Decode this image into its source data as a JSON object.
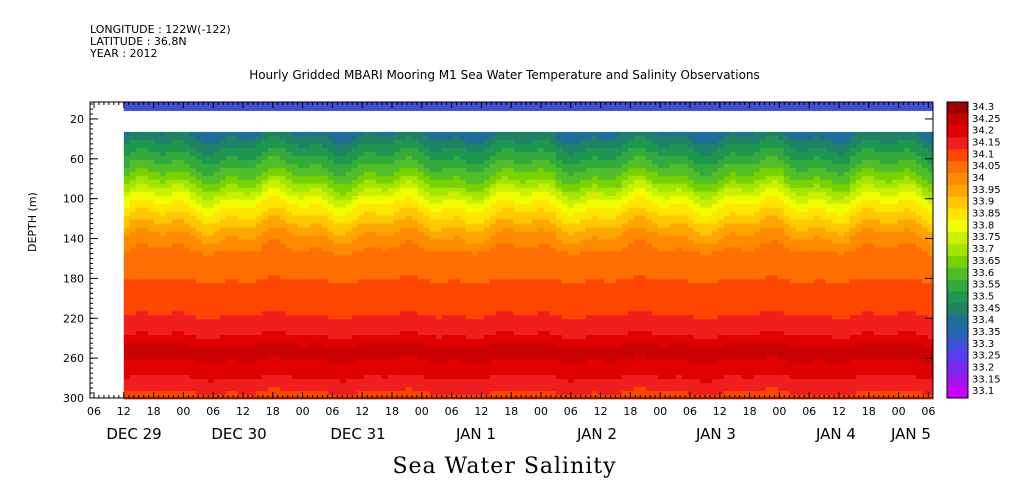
{
  "header": {
    "longitude": "LONGITUDE : 122W(-122)",
    "latitude": "LATITUDE : 36.8N",
    "year": "YEAR : 2012"
  },
  "chart_data": {
    "type": "heatmap",
    "title": "Hourly Gridded MBARI Mooring M1 Sea Water Temperature and Salinity Observations",
    "variable_label": "Sea Water Salinity",
    "ylabel": "DEPTH (m)",
    "y_ticks": [
      20,
      60,
      100,
      140,
      180,
      220,
      260,
      300
    ],
    "ylim": [
      300,
      3
    ],
    "x_hour_ticks": [
      "06",
      "12",
      "18",
      "00",
      "06",
      "12",
      "18",
      "00",
      "06",
      "12",
      "18",
      "00",
      "06",
      "12",
      "18",
      "00",
      "06",
      "12",
      "18",
      "00",
      "06",
      "12",
      "18",
      "00",
      "06",
      "12",
      "18",
      "00",
      "06"
    ],
    "x_day_labels": [
      "DEC 29",
      "DEC 30",
      "DEC 31",
      "JAN  1",
      "JAN  2",
      "JAN  3",
      "JAN  4",
      "JAN  5"
    ],
    "data_start": "DEC 29 12",
    "colorbar_levels": [
      "34.3",
      "34.25",
      "34.2",
      "34.15",
      "34.1",
      "34.05",
      "34",
      "33.95",
      "33.9",
      "33.85",
      "33.8",
      "33.75",
      "33.7",
      "33.65",
      "33.6",
      "33.55",
      "33.5",
      "33.45",
      "33.4",
      "33.35",
      "33.3",
      "33.25",
      "33.2",
      "33.15",
      "33.1"
    ],
    "colorbar_colors": [
      "#a00000",
      "#c80000",
      "#e00000",
      "#f01e1e",
      "#ff4600",
      "#ff6e00",
      "#ff8c00",
      "#ffa500",
      "#ffc800",
      "#ffe600",
      "#f0ff00",
      "#c8f000",
      "#a0e600",
      "#78d200",
      "#50be28",
      "#32aa3c",
      "#1e9650",
      "#1e8264",
      "#1e6e96",
      "#2864b4",
      "#3c50dc",
      "#5a3cf0",
      "#7828f0",
      "#a014f0",
      "#c800ff"
    ],
    "depth_profile_salinity": [
      [
        10,
        33.3
      ],
      [
        40,
        33.45
      ],
      [
        60,
        33.55
      ],
      [
        80,
        33.65
      ],
      [
        100,
        33.8
      ],
      [
        120,
        33.9
      ],
      [
        140,
        34.0
      ],
      [
        160,
        34.05
      ],
      [
        200,
        34.1
      ],
      [
        230,
        34.15
      ],
      [
        250,
        34.25
      ],
      [
        270,
        34.2
      ],
      [
        300,
        34.1
      ]
    ]
  }
}
